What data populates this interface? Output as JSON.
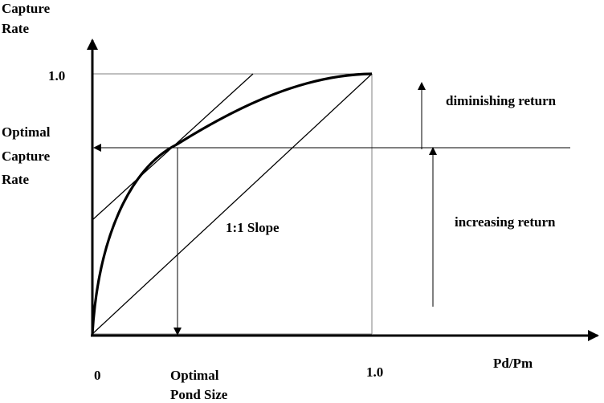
{
  "axes": {
    "y_label_line1": "Capture",
    "y_label_line2": "Rate",
    "x_label": "Pd/Pm",
    "y_tick_max": "1.0",
    "x_tick_origin": "0",
    "x_tick_max": "1.0"
  },
  "annotations": {
    "optimal_capture_rate_line1": "Optimal",
    "optimal_capture_rate_line2": "Capture",
    "optimal_capture_rate_line3": "Rate",
    "optimal_pond_size_line1": "Optimal",
    "optimal_pond_size_line2": "Pond Size",
    "slope_label": "1:1 Slope",
    "diminishing_return": "diminishing return",
    "increasing_return": "increasing return"
  },
  "colors": {
    "ink": "#000000",
    "background": "#ffffff",
    "box": "#808080"
  }
}
